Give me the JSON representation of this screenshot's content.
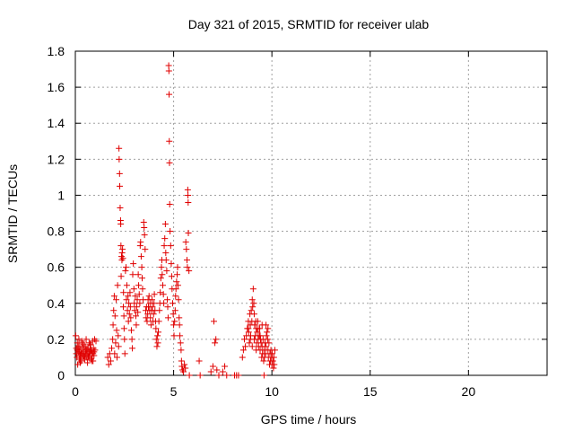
{
  "chart_data": {
    "type": "scatter",
    "title": "Day 321 of 2015, SRMTID for receiver ulab",
    "xlabel": "GPS time / hours",
    "ylabel": "SRMTID / TECUs",
    "xlim": [
      0,
      24
    ],
    "ylim": [
      0,
      1.8
    ],
    "xticks": [
      0,
      5,
      10,
      15,
      20
    ],
    "yticks": [
      0,
      0.2,
      0.4,
      0.6,
      0.8,
      1,
      1.2,
      1.4,
      1.6,
      1.8
    ],
    "xtick_labels": [
      "0",
      "5",
      "10",
      "15",
      "20"
    ],
    "ytick_labels": [
      "0",
      "0.2",
      "0.4",
      "0.6",
      "0.8",
      "1",
      "1.2",
      "1.4",
      "1.6",
      "1.8"
    ],
    "grid": true,
    "marker": "plus",
    "color": "#e00000",
    "series": [
      {
        "points": [
          [
            0.02,
            0.22
          ],
          [
            0.05,
            0.15
          ],
          [
            0.08,
            0.1
          ],
          [
            0.1,
            0.18
          ],
          [
            0.12,
            0.06
          ],
          [
            0.15,
            0.13
          ],
          [
            0.18,
            0.2
          ],
          [
            0.2,
            0.09
          ],
          [
            0.22,
            0.16
          ],
          [
            0.25,
            0.11
          ],
          [
            0.28,
            0.14
          ],
          [
            0.3,
            0.08
          ],
          [
            0.33,
            0.19
          ],
          [
            0.35,
            0.12
          ],
          [
            0.38,
            0.15
          ],
          [
            0.4,
            0.1
          ],
          [
            0.42,
            0.17
          ],
          [
            0.45,
            0.13
          ],
          [
            0.48,
            0.09
          ],
          [
            0.5,
            0.16
          ],
          [
            0.52,
            0.12
          ],
          [
            0.55,
            0.2
          ],
          [
            0.58,
            0.1
          ],
          [
            0.6,
            0.14
          ],
          [
            0.62,
            0.07
          ],
          [
            0.65,
            0.15
          ],
          [
            0.68,
            0.11
          ],
          [
            0.7,
            0.18
          ],
          [
            0.72,
            0.1
          ],
          [
            0.75,
            0.13
          ],
          [
            0.78,
            0.17
          ],
          [
            0.8,
            0.09
          ],
          [
            0.82,
            0.14
          ],
          [
            0.85,
            0.12
          ],
          [
            0.88,
            0.19
          ],
          [
            0.9,
            0.08
          ],
          [
            0.92,
            0.15
          ],
          [
            0.95,
            0.11
          ],
          [
            0.98,
            0.2
          ],
          [
            1.0,
            0.14
          ],
          [
            0.05,
            0.12
          ],
          [
            0.15,
            0.16
          ],
          [
            0.25,
            0.07
          ],
          [
            0.35,
            0.18
          ],
          [
            0.45,
            0.11
          ],
          [
            0.55,
            0.14
          ],
          [
            0.65,
            0.1
          ],
          [
            0.75,
            0.17
          ],
          [
            0.85,
            0.08
          ],
          [
            0.95,
            0.13
          ],
          [
            0.1,
            0.14
          ],
          [
            0.3,
            0.12
          ],
          [
            0.5,
            0.1
          ],
          [
            0.7,
            0.13
          ],
          [
            0.9,
            0.12
          ],
          [
            0.2,
            0.13
          ],
          [
            0.4,
            0.11
          ],
          [
            0.6,
            0.12
          ],
          [
            0.8,
            0.14
          ],
          [
            1.05,
            0.19
          ],
          [
            1.65,
            0.1
          ],
          [
            1.7,
            0.06
          ],
          [
            1.75,
            0.12
          ],
          [
            1.8,
            0.08
          ],
          [
            1.85,
            0.15
          ],
          [
            1.9,
            0.2
          ],
          [
            1.92,
            0.28
          ],
          [
            1.95,
            0.36
          ],
          [
            1.98,
            0.44
          ],
          [
            2.0,
            0.12
          ],
          [
            2.02,
            0.33
          ],
          [
            2.05,
            0.18
          ],
          [
            2.08,
            0.42
          ],
          [
            2.1,
            0.25
          ],
          [
            2.12,
            0.1
          ],
          [
            2.15,
            0.5
          ],
          [
            2.18,
            0.22
          ],
          [
            2.2,
            0.16
          ],
          [
            2.22,
            1.26
          ],
          [
            2.23,
            1.2
          ],
          [
            2.25,
            1.12
          ],
          [
            2.26,
            1.05
          ],
          [
            2.28,
            0.93
          ],
          [
            2.3,
            0.86
          ],
          [
            2.31,
            0.84
          ],
          [
            2.32,
            0.72
          ],
          [
            2.33,
            0.55
          ],
          [
            2.35,
            0.66
          ],
          [
            2.37,
            0.64
          ],
          [
            2.38,
            0.68
          ],
          [
            2.4,
            0.7
          ],
          [
            2.42,
            0.65
          ],
          [
            2.44,
            0.38
          ],
          [
            2.45,
            0.46
          ],
          [
            2.47,
            0.33
          ],
          [
            2.48,
            0.26
          ],
          [
            2.5,
            0.2
          ],
          [
            2.52,
            0.12
          ],
          [
            2.55,
            0.58
          ],
          [
            2.58,
            0.6
          ],
          [
            2.6,
            0.42
          ],
          [
            2.62,
            0.5
          ],
          [
            2.65,
            0.36
          ],
          [
            2.68,
            0.44
          ],
          [
            2.7,
            0.3
          ],
          [
            2.72,
            0.4
          ],
          [
            2.75,
            0.34
          ],
          [
            2.78,
            0.46
          ],
          [
            2.8,
            0.38
          ],
          [
            2.82,
            0.32
          ],
          [
            2.85,
            0.25
          ],
          [
            2.88,
            0.2
          ],
          [
            2.9,
            0.15
          ],
          [
            2.92,
            0.56
          ],
          [
            2.95,
            0.62
          ],
          [
            2.98,
            0.48
          ],
          [
            3.0,
            0.4
          ],
          [
            3.02,
            0.36
          ],
          [
            3.05,
            0.44
          ],
          [
            3.08,
            0.33
          ],
          [
            3.1,
            0.28
          ],
          [
            3.12,
            0.38
          ],
          [
            3.15,
            0.42
          ],
          [
            3.18,
            0.35
          ],
          [
            3.2,
            0.56
          ],
          [
            3.22,
            0.5
          ],
          [
            3.25,
            0.45
          ],
          [
            3.28,
            0.4
          ],
          [
            3.3,
            0.72
          ],
          [
            3.32,
            0.74
          ],
          [
            3.35,
            0.66
          ],
          [
            3.38,
            0.6
          ],
          [
            3.4,
            0.54
          ],
          [
            3.42,
            0.48
          ],
          [
            3.45,
            0.42
          ],
          [
            3.48,
            0.85
          ],
          [
            3.5,
            0.82
          ],
          [
            3.52,
            0.78
          ],
          [
            3.55,
            0.7
          ],
          [
            3.58,
            0.36
          ],
          [
            3.6,
            0.32
          ],
          [
            3.62,
            0.38
          ],
          [
            3.65,
            0.3
          ],
          [
            3.68,
            0.34
          ],
          [
            3.7,
            0.42
          ],
          [
            3.72,
            0.38
          ],
          [
            3.75,
            0.44
          ],
          [
            3.78,
            0.36
          ],
          [
            3.8,
            0.4
          ],
          [
            3.82,
            0.32
          ],
          [
            3.85,
            0.28
          ],
          [
            3.88,
            0.36
          ],
          [
            3.9,
            0.42
          ],
          [
            3.92,
            0.38
          ],
          [
            3.95,
            0.3
          ],
          [
            3.98,
            0.34
          ],
          [
            4.0,
            0.4
          ],
          [
            4.02,
            0.45
          ],
          [
            4.05,
            0.36
          ],
          [
            4.08,
            0.3
          ],
          [
            4.1,
            0.26
          ],
          [
            4.12,
            0.2
          ],
          [
            4.15,
            0.16
          ],
          [
            4.18,
            0.22
          ],
          [
            4.2,
            0.18
          ],
          [
            4.22,
            0.24
          ],
          [
            4.25,
            0.3
          ],
          [
            4.28,
            0.36
          ],
          [
            4.3,
            0.4
          ],
          [
            4.32,
            0.46
          ],
          [
            4.35,
            0.54
          ],
          [
            4.38,
            0.6
          ],
          [
            4.4,
            0.64
          ],
          [
            4.42,
            0.56
          ],
          [
            4.45,
            0.5
          ],
          [
            4.48,
            0.45
          ],
          [
            4.5,
            0.4
          ],
          [
            4.52,
            0.72
          ],
          [
            4.55,
            0.76
          ],
          [
            4.58,
            0.84
          ],
          [
            4.6,
            0.68
          ],
          [
            4.62,
            0.64
          ],
          [
            4.65,
            0.58
          ],
          [
            4.68,
            0.42
          ],
          [
            4.7,
            0.38
          ],
          [
            4.72,
            0.32
          ],
          [
            4.75,
            1.72
          ],
          [
            4.76,
            1.69
          ],
          [
            4.77,
            1.56
          ],
          [
            4.78,
            1.3
          ],
          [
            4.79,
            1.18
          ],
          [
            4.8,
            0.95
          ],
          [
            4.82,
            0.8
          ],
          [
            4.85,
            0.72
          ],
          [
            4.88,
            0.62
          ],
          [
            4.9,
            0.55
          ],
          [
            4.92,
            0.48
          ],
          [
            4.95,
            0.4
          ],
          [
            4.98,
            0.34
          ],
          [
            5.0,
            0.28
          ],
          [
            5.02,
            0.22
          ],
          [
            5.05,
            0.3
          ],
          [
            5.08,
            0.36
          ],
          [
            5.1,
            0.44
          ],
          [
            5.12,
            0.48
          ],
          [
            5.15,
            0.52
          ],
          [
            5.18,
            0.56
          ],
          [
            5.2,
            0.6
          ],
          [
            5.22,
            0.5
          ],
          [
            5.25,
            0.42
          ],
          [
            5.28,
            0.32
          ],
          [
            5.3,
            0.28
          ],
          [
            5.32,
            0.22
          ],
          [
            5.35,
            0.18
          ],
          [
            5.38,
            0.14
          ],
          [
            5.4,
            0.08
          ],
          [
            5.42,
            0.05
          ],
          [
            5.45,
            0.03
          ],
          [
            5.5,
            0.02
          ],
          [
            5.55,
            0.06
          ],
          [
            5.6,
            0.04
          ],
          [
            5.62,
            0.74
          ],
          [
            5.65,
            0.7
          ],
          [
            5.68,
            0.64
          ],
          [
            5.7,
            0.6
          ],
          [
            5.72,
            1.03
          ],
          [
            5.73,
            1.0
          ],
          [
            5.74,
            0.96
          ],
          [
            5.75,
            0.79
          ],
          [
            5.78,
            0.58
          ],
          [
            5.8,
            0.0
          ],
          [
            6.3,
            0.08
          ],
          [
            6.35,
            0.0
          ],
          [
            6.9,
            0.02
          ],
          [
            7.0,
            0.05
          ],
          [
            7.05,
            0.3
          ],
          [
            7.1,
            0.18
          ],
          [
            7.15,
            0.2
          ],
          [
            7.2,
            0.03
          ],
          [
            7.3,
            0.0
          ],
          [
            7.5,
            0.02
          ],
          [
            7.6,
            0.05
          ],
          [
            7.7,
            0.0
          ],
          [
            8.1,
            0.0
          ],
          [
            8.2,
            0.0
          ],
          [
            8.3,
            0.0
          ],
          [
            8.5,
            0.1
          ],
          [
            8.55,
            0.14
          ],
          [
            8.6,
            0.2
          ],
          [
            8.65,
            0.16
          ],
          [
            8.7,
            0.22
          ],
          [
            8.75,
            0.26
          ],
          [
            8.8,
            0.3
          ],
          [
            8.82,
            0.24
          ],
          [
            8.85,
            0.18
          ],
          [
            8.88,
            0.34
          ],
          [
            8.9,
            0.28
          ],
          [
            8.92,
            0.22
          ],
          [
            8.95,
            0.36
          ],
          [
            8.98,
            0.3
          ],
          [
            9.0,
            0.42
          ],
          [
            9.02,
            0.38
          ],
          [
            9.05,
            0.48
          ],
          [
            9.08,
            0.4
          ],
          [
            9.1,
            0.34
          ],
          [
            9.12,
            0.28
          ],
          [
            9.15,
            0.22
          ],
          [
            9.18,
            0.3
          ],
          [
            9.2,
            0.26
          ],
          [
            9.22,
            0.18
          ],
          [
            9.25,
            0.24
          ],
          [
            9.28,
            0.3
          ],
          [
            9.3,
            0.2
          ],
          [
            9.32,
            0.16
          ],
          [
            9.35,
            0.22
          ],
          [
            9.38,
            0.26
          ],
          [
            9.4,
            0.14
          ],
          [
            9.42,
            0.2
          ],
          [
            9.45,
            0.18
          ],
          [
            9.48,
            0.1
          ],
          [
            9.5,
            0.16
          ],
          [
            9.52,
            0.12
          ],
          [
            9.55,
            0.2
          ],
          [
            9.58,
            0.08
          ],
          [
            9.6,
            0.14
          ],
          [
            9.62,
            0.1
          ],
          [
            9.65,
            0.18
          ],
          [
            9.68,
            0.12
          ],
          [
            9.7,
            0.16
          ],
          [
            9.72,
            0.22
          ],
          [
            9.75,
            0.24
          ],
          [
            9.78,
            0.2
          ],
          [
            9.8,
            0.14
          ],
          [
            9.82,
            0.1
          ],
          [
            9.85,
            0.18
          ],
          [
            9.88,
            0.06
          ],
          [
            9.9,
            0.12
          ],
          [
            9.92,
            0.08
          ],
          [
            9.95,
            0.14
          ],
          [
            9.98,
            0.1
          ],
          [
            10.0,
            0.06
          ],
          [
            10.02,
            0.12
          ],
          [
            10.05,
            0.08
          ],
          [
            10.08,
            0.04
          ],
          [
            10.1,
            0.1
          ],
          [
            10.12,
            0.06
          ],
          [
            10.15,
            0.14
          ],
          [
            9.6,
            0.0
          ],
          [
            8.9,
            0.2
          ],
          [
            8.8,
            0.26
          ],
          [
            9.0,
            0.16
          ],
          [
            9.1,
            0.2
          ],
          [
            9.2,
            0.14
          ],
          [
            9.3,
            0.26
          ],
          [
            9.4,
            0.22
          ],
          [
            9.5,
            0.28
          ],
          [
            9.7,
            0.28
          ],
          [
            9.8,
            0.26
          ]
        ]
      }
    ]
  }
}
